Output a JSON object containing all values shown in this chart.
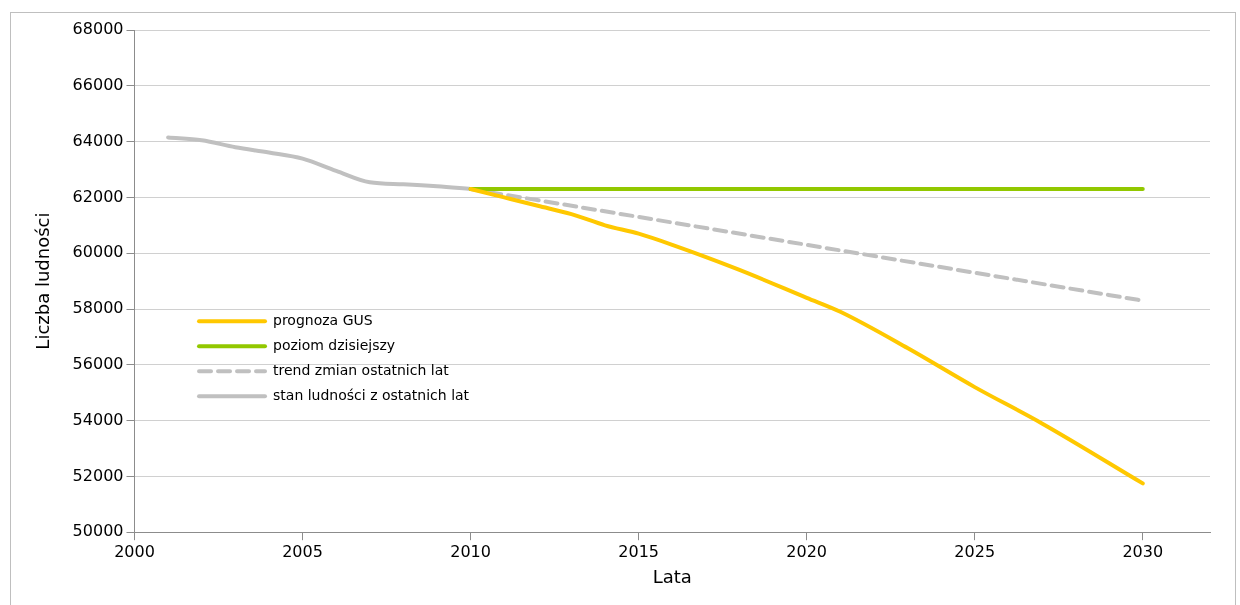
{
  "chart_data": {
    "type": "line",
    "xlabel": "Lata",
    "ylabel": "Liczba ludności",
    "xlim": [
      2000,
      2032
    ],
    "xticks": [
      2000,
      2005,
      2010,
      2015,
      2020,
      2025,
      2030
    ],
    "ylim": [
      50000,
      68000
    ],
    "yticks": [
      50000,
      52000,
      54000,
      56000,
      58000,
      60000,
      62000,
      64000,
      66000,
      68000
    ],
    "grid": "y",
    "legend": "bottom left",
    "marker": "none",
    "series": [
      {
        "name": "prognoza GUS",
        "color": "#ffc800",
        "x": [
          2010,
          2011,
          2012,
          2013,
          2014,
          2015,
          2016,
          2018,
          2020,
          2021,
          2023,
          2025,
          2027,
          2030
        ],
        "values": [
          62300,
          62000,
          61700,
          61400,
          61000,
          60700,
          60300,
          59400,
          58400,
          57900,
          56600,
          55200,
          53900,
          51750
        ]
      },
      {
        "name": "poziom dzisiejszy",
        "color": "#92c800",
        "x": [
          2010,
          2030
        ],
        "values": [
          62300,
          62300
        ]
      },
      {
        "name": "trend zmian ostatnich lat",
        "color": "#c0c0c0",
        "line_style": "dashed",
        "x": [
          2010,
          2015,
          2020,
          2025,
          2030
        ],
        "values": [
          62300,
          61300,
          60300,
          59300,
          58300
        ]
      },
      {
        "name": "stan ludności z ostatnich lat",
        "color": "#c0c0c0",
        "x": [
          2001,
          2002,
          2003,
          2004,
          2005,
          2006,
          2007,
          2008,
          2009,
          2010
        ],
        "values": [
          64150,
          64050,
          63800,
          63610,
          63390,
          62950,
          62540,
          62470,
          62400,
          62300
        ]
      }
    ]
  }
}
